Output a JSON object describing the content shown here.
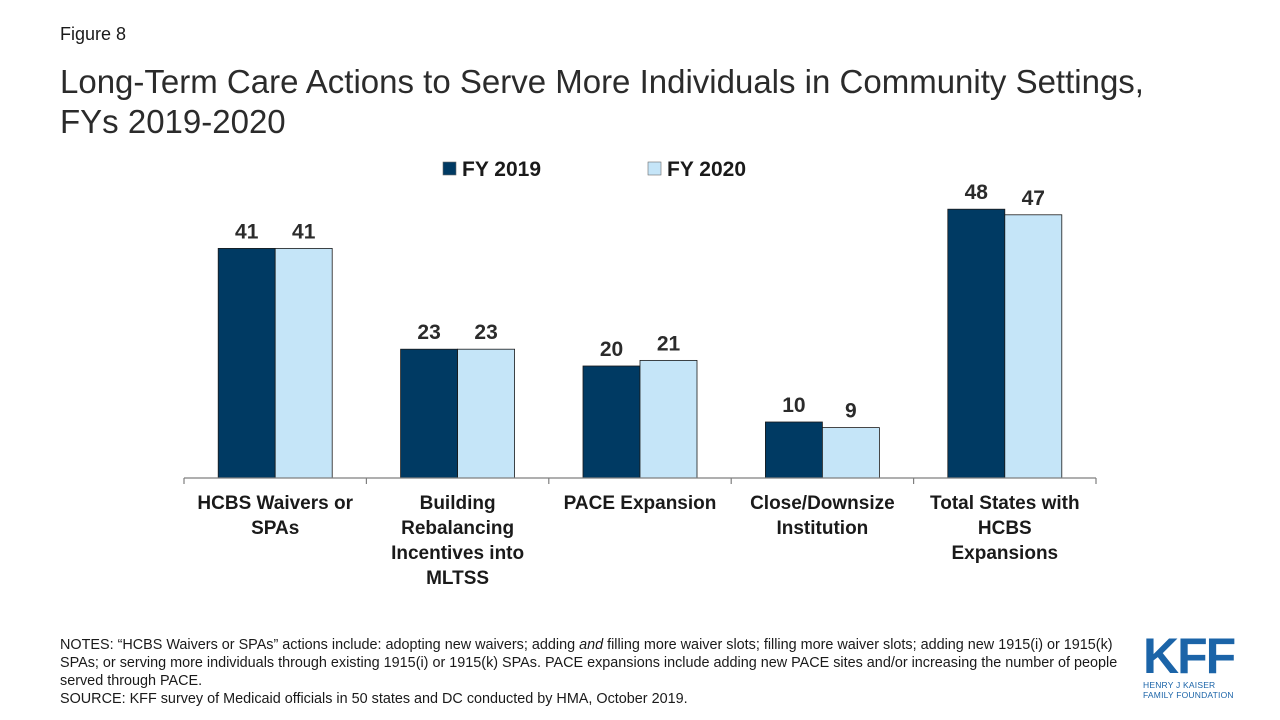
{
  "figure_label": "Figure 8",
  "title_lines": [
    "Long-Term Care Actions to Serve More Individuals in Community Settings,",
    "FYs 2019-2020"
  ],
  "chart_data": {
    "type": "bar",
    "categories": [
      [
        "HCBS Waivers or",
        "SPAs"
      ],
      [
        "Building",
        "Rebalancing",
        "Incentives into",
        "MLTSS"
      ],
      [
        "PACE Expansion"
      ],
      [
        "Close/Downsize",
        "Institution"
      ],
      [
        "Total States with",
        "HCBS",
        "Expansions"
      ]
    ],
    "series": [
      {
        "name": "FY 2019",
        "color": "#003a63",
        "values": [
          41,
          23,
          20,
          10,
          48
        ]
      },
      {
        "name": "FY 2020",
        "color": "#c5e5f8",
        "values": [
          41,
          23,
          21,
          9,
          47
        ]
      }
    ],
    "ylim": [
      0,
      55
    ],
    "legend_position": "top-center",
    "grid": false,
    "data_labels": true
  },
  "notes": {
    "notes_prefix": "NOTES: “HCBS Waivers or SPAs” actions include: adopting new waivers; adding ",
    "notes_emphasis": "and",
    "notes_rest": " filling more waiver slots; filling more waiver slots; adding new 1915(i) or 1915(k) SPAs; or serving more individuals through existing 1915(i) or 1915(k) SPAs. PACE expansions include adding new PACE sites and/or increasing the number of people served through PACE.",
    "source": "SOURCE: KFF survey of Medicaid officials in 50 states and DC conducted by HMA, October 2019."
  },
  "logo": {
    "mark": "KFF",
    "lines": [
      "HENRY J KAISER",
      "FAMILY FOUNDATION"
    ]
  }
}
